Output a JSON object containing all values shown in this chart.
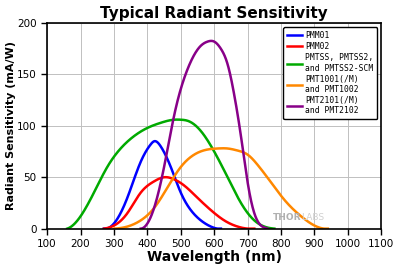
{
  "title": "Typical Radiant Sensitivity",
  "xlabel": "Wavelength (nm)",
  "ylabel": "Radiant Sensitivity (mA/W)",
  "xlim": [
    100,
    1100
  ],
  "ylim": [
    0,
    200
  ],
  "xticks": [
    100,
    200,
    300,
    400,
    500,
    600,
    700,
    800,
    900,
    1000,
    1100
  ],
  "yticks": [
    0,
    50,
    100,
    150,
    200
  ],
  "background_color": "#ffffff",
  "grid_color": "#c0c0c0",
  "curves": [
    {
      "label": "PMM01",
      "color": "#0000ff",
      "points_x": [
        270,
        300,
        340,
        380,
        410,
        420,
        440,
        470,
        500,
        530,
        560,
        590,
        610,
        620
      ],
      "points_y": [
        0,
        5,
        30,
        65,
        82,
        85,
        80,
        60,
        35,
        18,
        8,
        2,
        0,
        0
      ]
    },
    {
      "label": "PMM02",
      "color": "#ff0000",
      "points_x": [
        270,
        300,
        340,
        380,
        420,
        450,
        480,
        510,
        550,
        590,
        630,
        670,
        700,
        720
      ],
      "points_y": [
        0,
        3,
        15,
        35,
        46,
        50,
        48,
        42,
        30,
        18,
        8,
        2,
        0,
        0
      ]
    },
    {
      "label": "PMTSS, PMTSS2,\nand PMTSS2-SCM",
      "color": "#00aa00",
      "points_x": [
        160,
        200,
        240,
        280,
        320,
        360,
        400,
        440,
        480,
        500,
        520,
        560,
        600,
        640,
        680,
        720,
        760,
        780
      ],
      "points_y": [
        0,
        12,
        35,
        60,
        78,
        90,
        98,
        103,
        106,
        106,
        105,
        95,
        75,
        50,
        25,
        8,
        1,
        0
      ]
    },
    {
      "label": "PMT1001(/M)\nand PMT1002",
      "color": "#ff8800",
      "points_x": [
        300,
        340,
        380,
        420,
        460,
        500,
        540,
        580,
        610,
        640,
        670,
        700,
        730,
        770,
        810,
        860,
        900,
        940
      ],
      "points_y": [
        0,
        2,
        8,
        20,
        40,
        60,
        72,
        77,
        78,
        78,
        76,
        72,
        62,
        45,
        28,
        12,
        3,
        0
      ]
    },
    {
      "label": "PMT2101(/M)\nand PMT2102",
      "color": "#880088",
      "points_x": [
        380,
        400,
        420,
        450,
        480,
        520,
        560,
        580,
        600,
        620,
        640,
        660,
        680,
        700,
        720,
        740,
        760
      ],
      "points_y": [
        0,
        5,
        20,
        60,
        110,
        155,
        178,
        182,
        182,
        175,
        160,
        130,
        90,
        45,
        15,
        3,
        0
      ]
    }
  ],
  "thorlabs_text": "THOR",
  "thorlabs_text2": "LABS",
  "thorlabs_x": 860,
  "thorlabs_y": 6,
  "legend_font_size": 5.8,
  "title_fontsize": 11,
  "xlabel_fontsize": 10,
  "ylabel_fontsize": 8,
  "tick_labelsize": 7.5
}
